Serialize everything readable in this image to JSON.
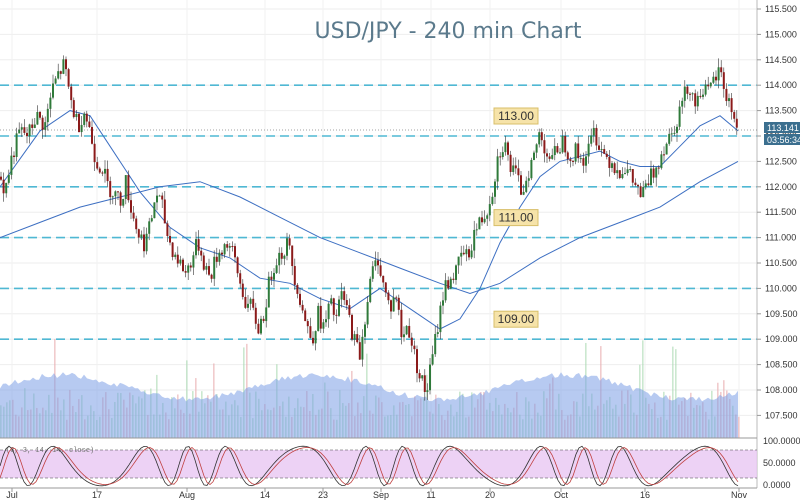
{
  "chart_data": {
    "type": "candlestick",
    "title": "USD/JPY - 240 min Chart",
    "ylim": [
      107.0,
      115.6
    ],
    "y_ticks": [
      "115.500",
      "115.000",
      "114.500",
      "114.000",
      "113.500",
      "113.000",
      "112.500",
      "112.000",
      "111.500",
      "111.000",
      "110.500",
      "110.000",
      "109.500",
      "109.000",
      "108.500",
      "108.000",
      "107.500"
    ],
    "x_ticks": [
      "Jul",
      "17",
      "Aug",
      "14",
      "23",
      "Sep",
      "11",
      "20",
      "Oct",
      "16",
      "Nov"
    ],
    "price_label": "113.141",
    "time_label": "03:56:34",
    "levels": [
      {
        "value": 114.0,
        "label": ""
      },
      {
        "value": 113.0,
        "label": "113.00"
      },
      {
        "value": 112.0,
        "label": ""
      },
      {
        "value": 111.0,
        "label": "111.00"
      },
      {
        "value": 110.0,
        "label": ""
      },
      {
        "value": 109.0,
        "label": "109.00"
      }
    ],
    "close_path": [
      [
        0,
        112.2
      ],
      [
        5,
        111.9
      ],
      [
        12,
        112.6
      ],
      [
        20,
        113.1
      ],
      [
        28,
        113.0
      ],
      [
        36,
        113.4
      ],
      [
        45,
        113.2
      ],
      [
        52,
        113.9
      ],
      [
        58,
        114.2
      ],
      [
        64,
        114.4
      ],
      [
        68,
        114.0
      ],
      [
        72,
        113.6
      ],
      [
        78,
        113.2
      ],
      [
        84,
        113.5
      ],
      [
        90,
        113.1
      ],
      [
        96,
        112.5
      ],
      [
        102,
        112.4
      ],
      [
        108,
        112.0
      ],
      [
        114,
        111.9
      ],
      [
        120,
        111.7
      ],
      [
        126,
        112.1
      ],
      [
        132,
        111.5
      ],
      [
        138,
        111.1
      ],
      [
        144,
        110.9
      ],
      [
        150,
        111.2
      ],
      [
        156,
        111.9
      ],
      [
        162,
        111.6
      ],
      [
        168,
        111.0
      ],
      [
        174,
        110.7
      ],
      [
        180,
        110.5
      ],
      [
        186,
        110.3
      ],
      [
        192,
        110.6
      ],
      [
        198,
        110.9
      ],
      [
        204,
        110.5
      ],
      [
        210,
        110.2
      ],
      [
        216,
        110.6
      ],
      [
        222,
        110.8
      ],
      [
        228,
        110.9
      ],
      [
        234,
        110.6
      ],
      [
        240,
        110.1
      ],
      [
        246,
        109.7
      ],
      [
        252,
        109.6
      ],
      [
        258,
        109.2
      ],
      [
        264,
        109.5
      ],
      [
        270,
        110.2
      ],
      [
        276,
        110.6
      ],
      [
        282,
        110.7
      ],
      [
        288,
        110.9
      ],
      [
        294,
        110.3
      ],
      [
        300,
        109.8
      ],
      [
        306,
        109.3
      ],
      [
        312,
        109.0
      ],
      [
        318,
        109.5
      ],
      [
        324,
        109.2
      ],
      [
        330,
        109.7
      ],
      [
        336,
        109.4
      ],
      [
        342,
        109.9
      ],
      [
        348,
        109.5
      ],
      [
        354,
        109.0
      ],
      [
        360,
        108.7
      ],
      [
        366,
        109.6
      ],
      [
        372,
        110.3
      ],
      [
        378,
        110.6
      ],
      [
        384,
        110.0
      ],
      [
        390,
        109.6
      ],
      [
        396,
        109.9
      ],
      [
        402,
        109.0
      ],
      [
        408,
        109.3
      ],
      [
        414,
        108.7
      ],
      [
        420,
        108.3
      ],
      [
        426,
        107.9
      ],
      [
        432,
        108.6
      ],
      [
        438,
        109.3
      ],
      [
        444,
        110.0
      ],
      [
        450,
        110.2
      ],
      [
        456,
        110.3
      ],
      [
        462,
        110.7
      ],
      [
        468,
        110.6
      ],
      [
        474,
        111.1
      ],
      [
        480,
        111.3
      ],
      [
        486,
        111.5
      ],
      [
        492,
        111.9
      ],
      [
        498,
        112.6
      ],
      [
        504,
        112.9
      ],
      [
        510,
        112.4
      ],
      [
        516,
        112.2
      ],
      [
        522,
        111.9
      ],
      [
        528,
        112.3
      ],
      [
        534,
        112.6
      ],
      [
        540,
        113.1
      ],
      [
        546,
        112.7
      ],
      [
        552,
        112.5
      ],
      [
        558,
        112.8
      ],
      [
        564,
        112.9
      ],
      [
        570,
        112.6
      ],
      [
        576,
        112.7
      ],
      [
        582,
        112.5
      ],
      [
        588,
        112.7
      ],
      [
        594,
        113.1
      ],
      [
        600,
        112.8
      ],
      [
        606,
        112.6
      ],
      [
        612,
        112.5
      ],
      [
        618,
        112.3
      ],
      [
        624,
        112.4
      ],
      [
        630,
        112.2
      ],
      [
        636,
        112.0
      ],
      [
        642,
        111.8
      ],
      [
        648,
        112.1
      ],
      [
        654,
        112.3
      ],
      [
        660,
        112.6
      ],
      [
        666,
        112.9
      ],
      [
        672,
        113.1
      ],
      [
        678,
        113.4
      ],
      [
        684,
        113.8
      ],
      [
        690,
        114.0
      ],
      [
        696,
        113.6
      ],
      [
        702,
        114.0
      ],
      [
        708,
        113.8
      ],
      [
        714,
        114.1
      ],
      [
        720,
        114.3
      ],
      [
        726,
        113.8
      ],
      [
        732,
        113.5
      ],
      [
        738,
        113.14
      ]
    ],
    "ma_fast": [
      [
        0,
        112.0
      ],
      [
        40,
        113.1
      ],
      [
        70,
        113.5
      ],
      [
        90,
        113.4
      ],
      [
        110,
        112.8
      ],
      [
        140,
        111.9
      ],
      [
        170,
        111.2
      ],
      [
        200,
        110.8
      ],
      [
        230,
        110.6
      ],
      [
        260,
        110.2
      ],
      [
        290,
        110.1
      ],
      [
        320,
        109.8
      ],
      [
        350,
        109.6
      ],
      [
        380,
        110.0
      ],
      [
        410,
        109.6
      ],
      [
        440,
        109.2
      ],
      [
        460,
        109.4
      ],
      [
        480,
        110.0
      ],
      [
        500,
        110.9
      ],
      [
        520,
        111.6
      ],
      [
        540,
        112.2
      ],
      [
        560,
        112.5
      ],
      [
        580,
        112.6
      ],
      [
        600,
        112.7
      ],
      [
        620,
        112.5
      ],
      [
        640,
        112.4
      ],
      [
        660,
        112.4
      ],
      [
        680,
        112.8
      ],
      [
        700,
        113.2
      ],
      [
        720,
        113.4
      ],
      [
        738,
        113.1
      ]
    ],
    "ma_slow": [
      [
        0,
        111.0
      ],
      [
        40,
        111.3
      ],
      [
        80,
        111.6
      ],
      [
        120,
        111.8
      ],
      [
        160,
        112.0
      ],
      [
        200,
        112.1
      ],
      [
        240,
        111.8
      ],
      [
        280,
        111.4
      ],
      [
        320,
        111.0
      ],
      [
        360,
        110.7
      ],
      [
        400,
        110.4
      ],
      [
        440,
        110.1
      ],
      [
        470,
        109.9
      ],
      [
        500,
        110.1
      ],
      [
        540,
        110.6
      ],
      [
        580,
        111.0
      ],
      [
        620,
        111.3
      ],
      [
        660,
        111.6
      ],
      [
        700,
        112.1
      ],
      [
        738,
        112.5
      ]
    ],
    "volume_ticks": [
      "108.000",
      "107.500"
    ],
    "oscillator": {
      "label": "(3, 3, 14, 14, close)",
      "ticks": [
        "100.0000",
        "50.0000",
        "0.0000"
      ]
    }
  }
}
